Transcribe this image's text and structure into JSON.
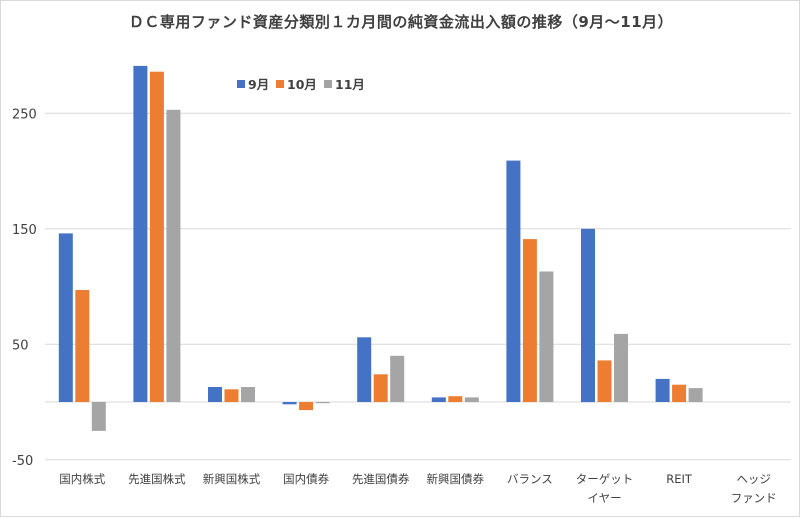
{
  "chart_data": {
    "type": "bar",
    "title": "ＤＣ専用ファンド資産分類別１カ月間の純資金流出入額の推移（9月～11月）",
    "categories": [
      "国内株式",
      "先進国株式",
      "新興国株式",
      "国内債券",
      "先進国債券",
      "新興国債券",
      "バランス",
      "ターゲット\nイヤー",
      "REIT",
      "ヘッジ\nファンド"
    ],
    "series": [
      {
        "name": "9月",
        "color": "#4472c4",
        "values": [
          146,
          291,
          13,
          -2,
          56,
          4,
          209,
          150,
          20,
          0
        ]
      },
      {
        "name": "10月",
        "color": "#ed7d31",
        "values": [
          97,
          286,
          11,
          -7,
          24,
          5,
          141,
          36,
          15,
          0
        ]
      },
      {
        "name": "11月",
        "color": "#a5a5a5",
        "values": [
          -25,
          253,
          13,
          -1,
          40,
          4,
          113,
          59,
          12,
          0
        ]
      }
    ],
    "yticks": [
      -50,
      50,
      150,
      250
    ],
    "ylim": [
      -50,
      300
    ],
    "xlabel": "",
    "ylabel": "",
    "grid": true,
    "legend_position": "top-center"
  }
}
